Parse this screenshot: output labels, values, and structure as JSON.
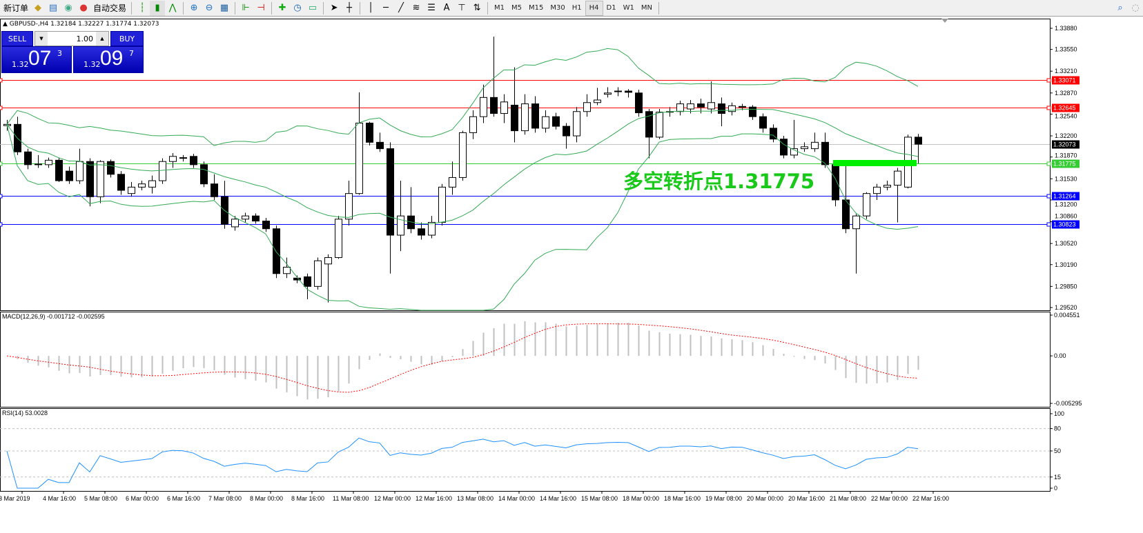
{
  "toolbar": {
    "new_order": "新订单",
    "auto_trading": "自动交易",
    "icons": [
      "market-watch-icon",
      "navigator-icon",
      "signals-icon",
      "bar-chart-icon",
      "candlestick-icon",
      "line-chart-icon",
      "zoom-in-icon",
      "zoom-out-icon",
      "tile-windows-icon",
      "auto-scroll-icon",
      "chart-shift-icon",
      "indicators-icon",
      "periods-icon",
      "templates-icon",
      "cursor-icon",
      "crosshair-icon",
      "vertical-line-icon",
      "horizontal-line-icon",
      "trendline-icon",
      "fibonacci-icon",
      "fibo-fan-icon",
      "text-icon",
      "text-label-icon",
      "arrows-icon"
    ],
    "text_tool": "A",
    "timeframes": [
      "M1",
      "M5",
      "M15",
      "M30",
      "H1",
      "H4",
      "D1",
      "W1",
      "MN"
    ],
    "active_timeframe": "H4"
  },
  "chart": {
    "symbol_line": "GBPUSD-,H4  1.32184 1.32227 1.31774 1.32073",
    "annotation": "多空转折点1.31775",
    "macd_label": "MACD(12,26,9) -0.001712 -0.002595",
    "rsi_label": "RSI(14) 53.0028"
  },
  "trade_panel": {
    "sell": "SELL",
    "buy": "BUY",
    "lot": "1.00",
    "sell_small": "1.32",
    "sell_big": "07",
    "sell_pip": "3",
    "buy_small": "1.32",
    "buy_big": "09",
    "buy_pip": "7"
  },
  "chart_data": {
    "type": "candlestick",
    "price_ticks": [
      "1.33880",
      "1.33550",
      "1.33210",
      "1.32870",
      "1.32540",
      "1.32200",
      "1.31870",
      "1.31530",
      "1.31200",
      "1.30860",
      "1.30520",
      "1.30190",
      "1.29850",
      "1.29520"
    ],
    "ylim": [
      1.2952,
      1.3388
    ],
    "hlines": [
      {
        "price": "1.33071",
        "color": "#ff0000"
      },
      {
        "price": "1.32645",
        "color": "#ff0000"
      },
      {
        "price": "1.32073",
        "color": "#000000",
        "line": "#c0c0c0"
      },
      {
        "price": "1.31775",
        "color": "#33cc33"
      },
      {
        "price": "1.31264",
        "color": "#0000ff"
      },
      {
        "price": "1.30823",
        "color": "#0000ff"
      }
    ],
    "x_labels": [
      "3 Mar 2019",
      "4 Mar 16:00",
      "5 Mar 08:00",
      "6 Mar 00:00",
      "6 Mar 16:00",
      "7 Mar 08:00",
      "8 Mar 00:00",
      "8 Mar 16:00",
      "11 Mar 08:00",
      "12 Mar 00:00",
      "12 Mar 16:00",
      "13 Mar 08:00",
      "14 Mar 00:00",
      "14 Mar 16:00",
      "15 Mar 08:00",
      "18 Mar 00:00",
      "18 Mar 16:00",
      "19 Mar 08:00",
      "20 Mar 00:00",
      "20 Mar 16:00",
      "21 Mar 08:00",
      "22 Mar 00:00",
      "22 Mar 16:00"
    ],
    "ohlc": [
      [
        1.3236,
        1.3245,
        1.3228,
        1.3238
      ],
      [
        1.3238,
        1.325,
        1.319,
        1.3195
      ],
      [
        1.3195,
        1.32,
        1.3168,
        1.3175
      ],
      [
        1.3176,
        1.319,
        1.317,
        1.3175
      ],
      [
        1.3175,
        1.3186,
        1.317,
        1.3182
      ],
      [
        1.3182,
        1.3186,
        1.3148,
        1.315
      ],
      [
        1.3165,
        1.3172,
        1.3145,
        1.315
      ],
      [
        1.315,
        1.32,
        1.3145,
        1.318
      ],
      [
        1.318,
        1.3185,
        1.311,
        1.3125
      ],
      [
        1.3125,
        1.3182,
        1.3115,
        1.318
      ],
      [
        1.318,
        1.3183,
        1.3155,
        1.316
      ],
      [
        1.316,
        1.3165,
        1.3128,
        1.3135
      ],
      [
        1.313,
        1.3148,
        1.3125,
        1.314
      ],
      [
        1.314,
        1.315,
        1.3135,
        1.3145
      ],
      [
        1.314,
        1.3158,
        1.313,
        1.315
      ],
      [
        1.315,
        1.3185,
        1.3145,
        1.318
      ],
      [
        1.318,
        1.3193,
        1.317,
        1.3188
      ],
      [
        1.3185,
        1.319,
        1.318,
        1.3186
      ],
      [
        1.3188,
        1.3192,
        1.317,
        1.3175
      ],
      [
        1.3175,
        1.318,
        1.314,
        1.3145
      ],
      [
        1.3145,
        1.316,
        1.312,
        1.3125
      ],
      [
        1.3125,
        1.315,
        1.3075,
        1.3082
      ],
      [
        1.3078,
        1.3095,
        1.3072,
        1.309
      ],
      [
        1.309,
        1.31,
        1.3085,
        1.3095
      ],
      [
        1.3095,
        1.3099,
        1.3083,
        1.3087
      ],
      [
        1.3087,
        1.3092,
        1.307,
        1.3075
      ],
      [
        1.3075,
        1.308,
        1.2998,
        1.3005
      ],
      [
        1.3005,
        1.303,
        1.2998,
        1.3015
      ],
      [
        1.2998,
        1.3002,
        1.299,
        1.2995
      ],
      [
        1.3,
        1.3005,
        1.2965,
        1.2985
      ],
      [
        1.2985,
        1.303,
        1.298,
        1.3025
      ],
      [
        1.302,
        1.3035,
        1.296,
        1.303
      ],
      [
        1.303,
        1.3095,
        1.3028,
        1.309
      ],
      [
        1.309,
        1.315,
        1.308,
        1.313
      ],
      [
        1.313,
        1.3288,
        1.3128,
        1.324
      ],
      [
        1.324,
        1.3242,
        1.3205,
        1.321
      ],
      [
        1.321,
        1.3225,
        1.3195,
        1.32
      ],
      [
        1.32,
        1.321,
        1.3005,
        1.3065
      ],
      [
        1.3065,
        1.315,
        1.304,
        1.3095
      ],
      [
        1.3095,
        1.314,
        1.3068,
        1.3075
      ],
      [
        1.3075,
        1.3085,
        1.3058,
        1.3065
      ],
      [
        1.3065,
        1.3095,
        1.306,
        1.3085
      ],
      [
        1.3085,
        1.3145,
        1.308,
        1.314
      ],
      [
        1.314,
        1.318,
        1.3128,
        1.3155
      ],
      [
        1.3155,
        1.3228,
        1.315,
        1.3225
      ],
      [
        1.3225,
        1.326,
        1.3215,
        1.325
      ],
      [
        1.325,
        1.33,
        1.324,
        1.328
      ],
      [
        1.328,
        1.3375,
        1.325,
        1.3255
      ],
      [
        1.3255,
        1.3285,
        1.324,
        1.3273
      ],
      [
        1.3268,
        1.3327,
        1.321,
        1.3228
      ],
      [
        1.3228,
        1.3285,
        1.3222,
        1.327
      ],
      [
        1.327,
        1.3282,
        1.3225,
        1.3232
      ],
      [
        1.3232,
        1.326,
        1.3225,
        1.325
      ],
      [
        1.325,
        1.3256,
        1.323,
        1.3235
      ],
      [
        1.3235,
        1.324,
        1.32,
        1.322
      ],
      [
        1.322,
        1.3265,
        1.321,
        1.3258
      ],
      [
        1.3258,
        1.3285,
        1.325,
        1.3272
      ],
      [
        1.3272,
        1.3295,
        1.3268,
        1.3276
      ],
      [
        1.3285,
        1.3296,
        1.328,
        1.3287
      ],
      [
        1.3289,
        1.3296,
        1.3282,
        1.329
      ],
      [
        1.329,
        1.3293,
        1.328,
        1.3288
      ],
      [
        1.3287,
        1.3292,
        1.325,
        1.3256
      ],
      [
        1.3258,
        1.3262,
        1.3185,
        1.3218
      ],
      [
        1.3218,
        1.3262,
        1.3215,
        1.3257
      ],
      [
        1.3257,
        1.3265,
        1.325,
        1.3258
      ],
      [
        1.3258,
        1.3275,
        1.3252,
        1.327
      ],
      [
        1.3262,
        1.3276,
        1.3255,
        1.327
      ],
      [
        1.327,
        1.3278,
        1.3255,
        1.3265
      ],
      [
        1.3262,
        1.3305,
        1.3255,
        1.3272
      ],
      [
        1.327,
        1.328,
        1.3235,
        1.3255
      ],
      [
        1.3258,
        1.3272,
        1.3252,
        1.3267
      ],
      [
        1.3265,
        1.327,
        1.326,
        1.3266
      ],
      [
        1.3265,
        1.3268,
        1.3245,
        1.325
      ],
      [
        1.325,
        1.3255,
        1.3225,
        1.3232
      ],
      [
        1.3232,
        1.3238,
        1.321,
        1.3215
      ],
      [
        1.3215,
        1.322,
        1.3185,
        1.319
      ],
      [
        1.319,
        1.3245,
        1.3185,
        1.32
      ],
      [
        1.32,
        1.321,
        1.3195,
        1.3203
      ],
      [
        1.32,
        1.3225,
        1.3195,
        1.321
      ],
      [
        1.321,
        1.3225,
        1.317,
        1.3175
      ],
      [
        1.3175,
        1.3178,
        1.311,
        1.312
      ],
      [
        1.312,
        1.3175,
        1.3068,
        1.3075
      ],
      [
        1.3075,
        1.3098,
        1.3005,
        1.3095
      ],
      [
        1.3095,
        1.3132,
        1.309,
        1.313
      ],
      [
        1.313,
        1.3145,
        1.312,
        1.314
      ],
      [
        1.314,
        1.315,
        1.3135,
        1.3143
      ],
      [
        1.3143,
        1.317,
        1.3085,
        1.3165
      ],
      [
        1.314,
        1.3222,
        1.3138,
        1.3218
      ],
      [
        1.3218,
        1.3223,
        1.3177,
        1.3207
      ]
    ],
    "bollinger_color": "#33aa55",
    "macd": {
      "ticks": [
        "0.004551",
        "0.00",
        "-0.005295"
      ],
      "ylim": [
        -0.005295,
        0.004551
      ],
      "hist_color": "#c0c0c0",
      "signal_color": "#ff0000"
    },
    "rsi": {
      "ticks": [
        "100",
        "80",
        "50",
        "15",
        "0"
      ],
      "levels": [
        80,
        50,
        15
      ],
      "color": "#1e90ff"
    }
  }
}
